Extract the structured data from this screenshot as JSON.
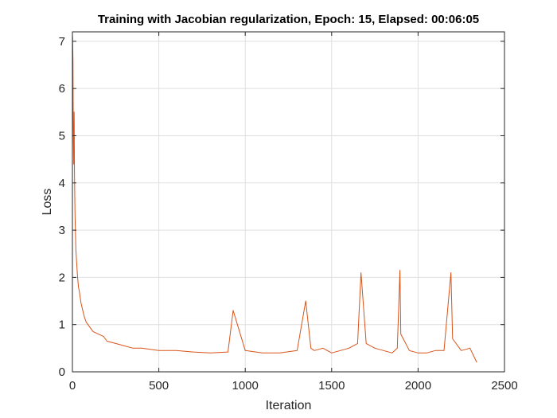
{
  "chart_data": {
    "type": "line",
    "title": "Training with Jacobian regularization, Epoch: 15, Elapsed: 00:06:05",
    "xlabel": "Iteration",
    "ylabel": "Loss",
    "xlim": [
      0,
      2500
    ],
    "ylim": [
      0,
      7.2
    ],
    "xticks": [
      0,
      500,
      1000,
      1500,
      2000,
      2500
    ],
    "yticks": [
      0,
      1,
      2,
      3,
      4,
      5,
      6,
      7
    ],
    "grid": true,
    "color": "#d95319",
    "series": [
      {
        "x": [
          1,
          3,
          5,
          8,
          10,
          12,
          15,
          18,
          20,
          25,
          30,
          35,
          40,
          50,
          60,
          70,
          80,
          100,
          120,
          150,
          180,
          200,
          250,
          300,
          350,
          400,
          500,
          600,
          700,
          800,
          900,
          930,
          1000,
          1100,
          1200,
          1300,
          1350,
          1380,
          1400,
          1450,
          1500,
          1550,
          1600,
          1650,
          1670,
          1700,
          1750,
          1800,
          1850,
          1880,
          1895,
          1900,
          1950,
          2000,
          2050,
          2100,
          2150,
          2190,
          2200,
          2250,
          2300,
          2340
        ],
        "y": [
          7.1,
          6.6,
          5.2,
          4.4,
          5.5,
          4.2,
          3.3,
          2.9,
          2.6,
          2.3,
          2.0,
          1.8,
          1.7,
          1.45,
          1.3,
          1.15,
          1.05,
          0.95,
          0.85,
          0.8,
          0.75,
          0.65,
          0.6,
          0.55,
          0.5,
          0.5,
          0.45,
          0.45,
          0.42,
          0.4,
          0.42,
          1.3,
          0.45,
          0.4,
          0.4,
          0.45,
          1.5,
          0.5,
          0.45,
          0.5,
          0.4,
          0.45,
          0.5,
          0.6,
          2.1,
          0.6,
          0.5,
          0.45,
          0.4,
          0.5,
          2.15,
          0.8,
          0.45,
          0.4,
          0.4,
          0.45,
          0.45,
          2.1,
          0.7,
          0.45,
          0.5,
          0.2
        ]
      }
    ]
  }
}
